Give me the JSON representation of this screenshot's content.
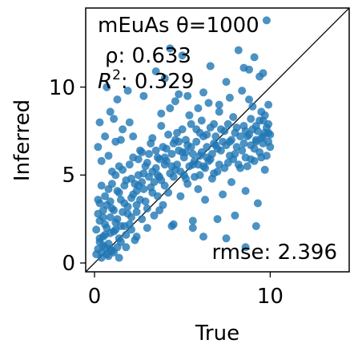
{
  "chart_data": {
    "type": "scatter",
    "title": "",
    "xlabel": "True",
    "ylabel": "Inferred",
    "xlim": [
      -0.5,
      14.5
    ],
    "ylim": [
      -0.5,
      14.5
    ],
    "xticks": [
      0,
      10
    ],
    "yticks": [
      0,
      5,
      10
    ],
    "xtick_labels": [
      "0",
      "10"
    ],
    "ytick_labels": [
      "0",
      "5",
      "10"
    ],
    "grid": false,
    "identity_line": true,
    "point_color": "#1f77b4",
    "annotations": {
      "name": "mEuAs θ=1000",
      "rho": "ρ: 0.633",
      "r2_prefix": "R",
      "r2_sup": "2",
      "r2_value": ": 0.329",
      "rmse": "rmse: 2.396"
    },
    "series": [
      {
        "points": [
          [
            0.1,
            0.5
          ],
          [
            0.2,
            0.8
          ],
          [
            0.3,
            1.2
          ],
          [
            0.4,
            0.6
          ],
          [
            0.5,
            1.5
          ],
          [
            0.6,
            0.9
          ],
          [
            0.7,
            2.0
          ],
          [
            0.8,
            1.1
          ],
          [
            0.9,
            2.6
          ],
          [
            1.0,
            0.7
          ],
          [
            0.2,
            2.8
          ],
          [
            0.3,
            3.4
          ],
          [
            0.5,
            3.0
          ],
          [
            0.6,
            3.8
          ],
          [
            0.8,
            4.2
          ],
          [
            1.0,
            3.1
          ],
          [
            1.1,
            1.8
          ],
          [
            1.2,
            2.3
          ],
          [
            1.3,
            0.9
          ],
          [
            1.4,
            1.4
          ],
          [
            1.5,
            3.6
          ],
          [
            1.6,
            2.9
          ],
          [
            1.7,
            4.4
          ],
          [
            1.8,
            1.6
          ],
          [
            1.9,
            3.2
          ],
          [
            2.0,
            2.2
          ],
          [
            2.1,
            4.8
          ],
          [
            2.2,
            3.9
          ],
          [
            2.3,
            1.3
          ],
          [
            2.4,
            4.1
          ],
          [
            0.2,
            6.6
          ],
          [
            0.4,
            5.8
          ],
          [
            0.6,
            7.2
          ],
          [
            0.8,
            6.1
          ],
          [
            1.0,
            5.2
          ],
          [
            1.2,
            6.9
          ],
          [
            1.4,
            5.5
          ],
          [
            0.3,
            8.0
          ],
          [
            0.9,
            8.6
          ],
          [
            1.3,
            9.3
          ],
          [
            0.7,
            10.0
          ],
          [
            1.9,
            9.8
          ],
          [
            1.1,
            8.2
          ],
          [
            1.6,
            7.6
          ],
          [
            2.0,
            8.0
          ],
          [
            2.5,
            5.9
          ],
          [
            2.6,
            6.4
          ],
          [
            2.7,
            4.6
          ],
          [
            2.8,
            5.1
          ],
          [
            2.9,
            3.5
          ],
          [
            3.0,
            5.7
          ],
          [
            3.1,
            6.2
          ],
          [
            3.2,
            4.3
          ],
          [
            3.3,
            7.1
          ],
          [
            3.4,
            2.7
          ],
          [
            3.5,
            5.4
          ],
          [
            3.6,
            6.0
          ],
          [
            3.7,
            4.9
          ],
          [
            3.8,
            7.8
          ],
          [
            3.9,
            3.3
          ],
          [
            4.0,
            5.6
          ],
          [
            4.1,
            6.5
          ],
          [
            4.2,
            4.0
          ],
          [
            4.3,
            8.8
          ],
          [
            4.4,
            2.1
          ],
          [
            4.5,
            6.8
          ],
          [
            4.6,
            5.3
          ],
          [
            4.7,
            7.4
          ],
          [
            4.8,
            9.6
          ],
          [
            4.9,
            3.8
          ],
          [
            5.0,
            6.3
          ],
          [
            5.1,
            5.0
          ],
          [
            5.2,
            7.0
          ],
          [
            5.3,
            4.5
          ],
          [
            5.4,
            8.4
          ],
          [
            5.5,
            6.6
          ],
          [
            5.6,
            2.4
          ],
          [
            5.7,
            5.8
          ],
          [
            5.8,
            7.6
          ],
          [
            5.9,
            4.2
          ],
          [
            6.0,
            6.1
          ],
          [
            6.1,
            8.1
          ],
          [
            6.2,
            5.5
          ],
          [
            6.3,
            3.6
          ],
          [
            6.4,
            7.3
          ],
          [
            6.5,
            9.1
          ],
          [
            6.6,
            5.9
          ],
          [
            6.7,
            4.8
          ],
          [
            6.8,
            7.9
          ],
          [
            6.9,
            6.7
          ],
          [
            7.0,
            5.2
          ],
          [
            7.1,
            8.6
          ],
          [
            7.2,
            6.4
          ],
          [
            7.3,
            3.9
          ],
          [
            7.4,
            7.5
          ],
          [
            7.5,
            10.3
          ],
          [
            7.6,
            5.7
          ],
          [
            7.7,
            6.9
          ],
          [
            7.8,
            4.6
          ],
          [
            7.9,
            8.3
          ],
          [
            8.0,
            6.2
          ],
          [
            8.1,
            7.7
          ],
          [
            8.2,
            12.1
          ],
          [
            8.3,
            5.4
          ],
          [
            8.4,
            9.8
          ],
          [
            8.5,
            6.8
          ],
          [
            8.6,
            4.1
          ],
          [
            8.7,
            7.2
          ],
          [
            8.8,
            11.0
          ],
          [
            8.9,
            5.9
          ],
          [
            9.0,
            8.9
          ],
          [
            9.1,
            6.5
          ],
          [
            9.2,
            7.8
          ],
          [
            9.3,
            3.4
          ],
          [
            9.4,
            10.6
          ],
          [
            9.5,
            6.0
          ],
          [
            9.6,
            8.1
          ],
          [
            9.7,
            5.3
          ],
          [
            9.8,
            13.8
          ],
          [
            9.9,
            7.4
          ],
          [
            6.2,
            1.5
          ],
          [
            7.0,
            2.5
          ],
          [
            7.5,
            1.4
          ],
          [
            8.0,
            2.7
          ],
          [
            8.6,
            0.9
          ],
          [
            9.2,
            2.1
          ],
          [
            5.6,
            2.0
          ],
          [
            4.5,
            2.2
          ],
          [
            3.7,
            3.0
          ],
          [
            2.4,
            1.5
          ],
          [
            4.3,
            12.2
          ],
          [
            4.0,
            10.5
          ],
          [
            3.5,
            10.9
          ],
          [
            5.0,
            11.8
          ],
          [
            6.6,
            11.2
          ],
          [
            9.1,
            11.7
          ],
          [
            8.5,
            11.1
          ],
          [
            9.6,
            10.8
          ],
          [
            2.8,
            9.5
          ],
          [
            4.6,
            9.2
          ],
          [
            5.3,
            9.5
          ],
          [
            7.7,
            9.4
          ],
          [
            6.2,
            9.7
          ],
          [
            8.8,
            9.3
          ],
          [
            9.9,
            9.0
          ],
          [
            7.1,
            9.0
          ],
          [
            3.8,
            8.5
          ],
          [
            5.9,
            8.8
          ],
          [
            1.5,
            7.0
          ],
          [
            2.2,
            7.2
          ],
          [
            0.1,
            1.9
          ],
          [
            0.2,
            3.6
          ],
          [
            0.3,
            2.4
          ],
          [
            0.4,
            4.4
          ],
          [
            0.5,
            1.0
          ],
          [
            0.6,
            2.2
          ],
          [
            0.7,
            3.3
          ],
          [
            0.8,
            0.4
          ],
          [
            0.9,
            1.7
          ],
          [
            1.0,
            4.5
          ],
          [
            1.1,
            3.0
          ],
          [
            1.2,
            5.0
          ],
          [
            1.3,
            2.5
          ],
          [
            1.4,
            4.0
          ],
          [
            1.5,
            1.2
          ],
          [
            1.6,
            5.3
          ],
          [
            1.7,
            3.4
          ],
          [
            1.8,
            4.7
          ],
          [
            1.9,
            2.8
          ],
          [
            2.0,
            5.6
          ],
          [
            2.1,
            3.7
          ],
          [
            2.2,
            6.0
          ],
          [
            2.3,
            4.5
          ],
          [
            2.4,
            2.9
          ],
          [
            2.5,
            5.0
          ],
          [
            2.6,
            3.6
          ],
          [
            2.7,
            6.3
          ],
          [
            2.8,
            4.2
          ],
          [
            2.9,
            5.5
          ],
          [
            3.0,
            3.1
          ],
          [
            3.1,
            4.9
          ],
          [
            3.2,
            6.8
          ],
          [
            3.3,
            5.2
          ],
          [
            3.4,
            4.6
          ],
          [
            3.5,
            6.4
          ],
          [
            3.6,
            3.8
          ],
          [
            3.7,
            5.9
          ],
          [
            3.8,
            4.7
          ],
          [
            3.9,
            6.6
          ],
          [
            4.0,
            4.4
          ],
          [
            4.1,
            5.8
          ],
          [
            4.2,
            7.3
          ],
          [
            4.3,
            5.1
          ],
          [
            4.4,
            6.2
          ],
          [
            4.5,
            4.9
          ],
          [
            4.6,
            7.0
          ],
          [
            4.7,
            5.6
          ],
          [
            4.8,
            6.4
          ],
          [
            4.9,
            5.2
          ],
          [
            5.0,
            7.6
          ],
          [
            5.1,
            6.0
          ],
          [
            5.2,
            4.8
          ],
          [
            5.3,
            6.7
          ],
          [
            5.4,
            5.5
          ],
          [
            5.5,
            7.9
          ],
          [
            5.6,
            6.2
          ],
          [
            5.7,
            4.9
          ],
          [
            5.8,
            6.9
          ],
          [
            5.9,
            5.6
          ],
          [
            6.0,
            7.4
          ],
          [
            6.1,
            6.3
          ],
          [
            6.2,
            7.2
          ],
          [
            6.3,
            5.4
          ],
          [
            6.4,
            6.6
          ],
          [
            6.5,
            5.8
          ],
          [
            6.6,
            7.7
          ],
          [
            6.7,
            6.2
          ],
          [
            6.8,
            5.1
          ],
          [
            6.9,
            7.2
          ],
          [
            7.0,
            6.5
          ],
          [
            7.1,
            5.6
          ],
          [
            7.2,
            7.6
          ],
          [
            7.3,
            6.9
          ],
          [
            7.4,
            5.4
          ],
          [
            7.5,
            6.7
          ],
          [
            7.6,
            7.9
          ],
          [
            7.7,
            6.1
          ],
          [
            7.8,
            7.0
          ],
          [
            7.9,
            5.9
          ],
          [
            8.0,
            7.4
          ],
          [
            8.1,
            6.6
          ],
          [
            8.2,
            5.6
          ],
          [
            8.3,
            7.2
          ],
          [
            8.4,
            6.4
          ],
          [
            8.5,
            7.8
          ],
          [
            8.6,
            6.0
          ],
          [
            8.7,
            5.5
          ],
          [
            8.8,
            7.3
          ],
          [
            8.9,
            6.7
          ],
          [
            9.0,
            7.6
          ],
          [
            9.1,
            5.8
          ],
          [
            9.2,
            6.9
          ],
          [
            9.3,
            7.5
          ],
          [
            9.4,
            6.3
          ],
          [
            9.5,
            7.1
          ],
          [
            9.6,
            6.8
          ],
          [
            9.7,
            7.4
          ],
          [
            9.8,
            6.1
          ],
          [
            9.9,
            7.9
          ],
          [
            10.0,
            6.6
          ],
          [
            9.6,
            7.2
          ],
          [
            9.8,
            7.7
          ],
          [
            10.0,
            7.3
          ],
          [
            9.4,
            8.1
          ],
          [
            9.2,
            7.0
          ],
          [
            8.9,
            8.2
          ],
          [
            8.6,
            7.5
          ],
          [
            9.9,
            6.9
          ],
          [
            9.7,
            8.4
          ],
          [
            9.5,
            8.6
          ],
          [
            0.3,
            1.4
          ],
          [
            0.6,
            1.6
          ],
          [
            0.9,
            0.8
          ],
          [
            1.2,
            1.9
          ],
          [
            1.5,
            2.1
          ],
          [
            1.8,
            0.9
          ],
          [
            2.1,
            2.6
          ],
          [
            2.4,
            3.3
          ],
          [
            2.7,
            2.5
          ],
          [
            3.0,
            2.0
          ],
          [
            0.4,
            0.3
          ],
          [
            0.7,
            0.5
          ],
          [
            1.1,
            0.6
          ],
          [
            1.4,
            0.3
          ],
          [
            0.5,
            2.6
          ],
          [
            0.9,
            3.5
          ],
          [
            1.3,
            4.1
          ],
          [
            1.7,
            2.1
          ],
          [
            2.1,
            1.9
          ],
          [
            2.5,
            4.4
          ],
          [
            3.3,
            4.0
          ],
          [
            3.6,
            5.0
          ],
          [
            4.0,
            6.0
          ],
          [
            4.4,
            5.5
          ],
          [
            4.8,
            6.9
          ],
          [
            5.2,
            6.3
          ],
          [
            5.6,
            5.6
          ],
          [
            6.0,
            5.0
          ],
          [
            6.4,
            6.0
          ],
          [
            6.8,
            6.8
          ]
        ]
      }
    ]
  }
}
